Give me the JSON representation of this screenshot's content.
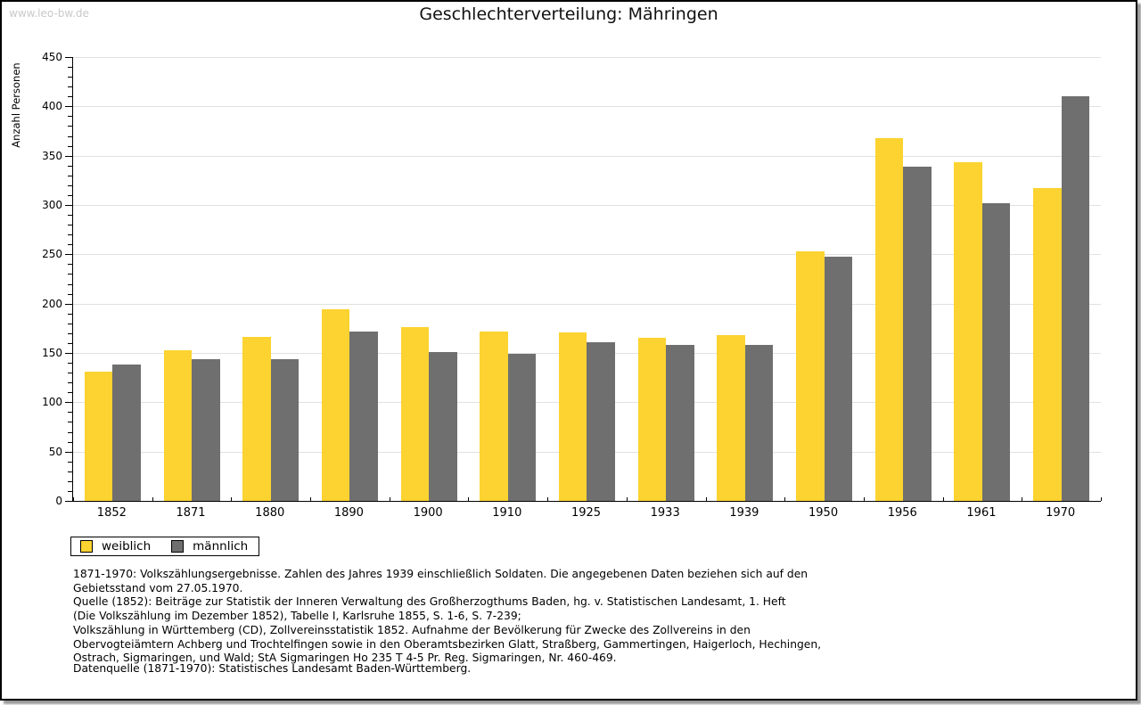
{
  "watermark": "www.leo-bw.de",
  "title": "Geschlechterverteilung: Mähringen",
  "y_axis_title": "Anzahl Personen",
  "colors": {
    "female": "#FCD330",
    "male": "#6F6F6F",
    "grid": "#E1E1E1",
    "axis": "#000000",
    "watermark": "#C9C9C9"
  },
  "legend": {
    "female_label": "weiblich",
    "male_label": "männlich"
  },
  "chart_data": {
    "type": "bar",
    "title": "Geschlechterverteilung: Mähringen",
    "xlabel": "",
    "ylabel": "Anzahl Personen",
    "ylim": [
      0,
      450
    ],
    "y_major_step": 50,
    "y_minor_step": 10,
    "grid": true,
    "legend_position": "bottom-left",
    "categories": [
      "1852",
      "1871",
      "1880",
      "1890",
      "1900",
      "1910",
      "1925",
      "1933",
      "1939",
      "1950",
      "1956",
      "1961",
      "1970"
    ],
    "series": [
      {
        "name": "weiblich",
        "color": "#FCD330",
        "values": [
          131,
          153,
          166,
          194,
          176,
          172,
          171,
          165,
          168,
          253,
          368,
          343,
          317
        ]
      },
      {
        "name": "männlich",
        "color": "#6F6F6F",
        "values": [
          138,
          144,
          144,
          172,
          151,
          149,
          161,
          158,
          158,
          248,
          339,
          302,
          410
        ]
      }
    ]
  },
  "footnotes": [
    "1871-1970: Volkszählungsergebnisse. Zahlen des Jahres 1939 einschließlich Soldaten. Die angegebenen Daten beziehen sich auf den",
    "Gebietsstand vom 27.05.1970.",
    "Quelle (1852): Beiträge zur Statistik der Inneren Verwaltung des Großherzogthums Baden, hg. v. Statistischen Landesamt, 1. Heft",
    "(Die Volkszählung im Dezember 1852), Tabelle I, Karlsruhe 1855, S. 1-6, S. 7-239;",
    "Volkszählung in Württemberg (CD), Zollvereinsstatistik 1852. Aufnahme der Bevölkerung für Zwecke des Zollvereins in den",
    "Obervogteiämtern Achberg und Trochtelfingen sowie in den Oberamtsbezirken Glatt, Straßberg, Gammertingen, Haigerloch, Hechingen,",
    "Ostrach, Sigmaringen, und Wald; StA Sigmaringen Ho 235 T 4-5 Pr. Reg. Sigmaringen, Nr. 460-469."
  ],
  "datasource": "Datenquelle (1871-1970): Statistisches Landesamt Baden-Württemberg."
}
